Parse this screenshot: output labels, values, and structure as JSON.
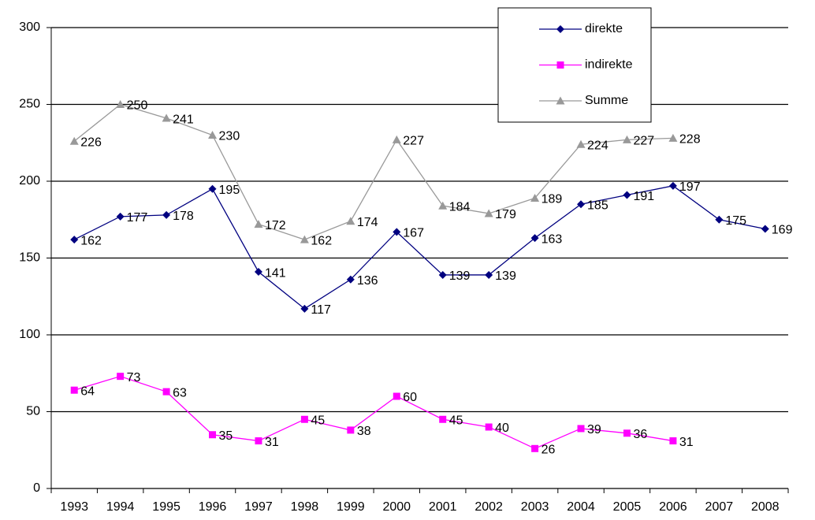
{
  "chart_data": {
    "type": "line",
    "categories": [
      "1993",
      "1994",
      "1995",
      "1996",
      "1997",
      "1998",
      "1999",
      "2000",
      "2001",
      "2002",
      "2003",
      "2004",
      "2005",
      "2006",
      "2007",
      "2008"
    ],
    "series": [
      {
        "name": "direkte",
        "color": "#000080",
        "marker": "diamond",
        "values": [
          162,
          177,
          178,
          195,
          141,
          117,
          136,
          167,
          139,
          139,
          163,
          185,
          191,
          197,
          175,
          169
        ]
      },
      {
        "name": "indirekte",
        "color": "#ff00ff",
        "marker": "square",
        "values": [
          64,
          73,
          63,
          35,
          31,
          45,
          38,
          60,
          45,
          40,
          26,
          39,
          36,
          31,
          null,
          null
        ]
      },
      {
        "name": "Summe",
        "color": "#999999",
        "marker": "triangle",
        "values": [
          226,
          250,
          241,
          230,
          172,
          162,
          174,
          227,
          184,
          179,
          189,
          224,
          227,
          228,
          null,
          null
        ]
      }
    ],
    "ylim": [
      0,
      300
    ],
    "yticks": [
      0,
      50,
      100,
      150,
      200,
      250,
      300
    ],
    "grid": true,
    "legend": "top-right"
  }
}
